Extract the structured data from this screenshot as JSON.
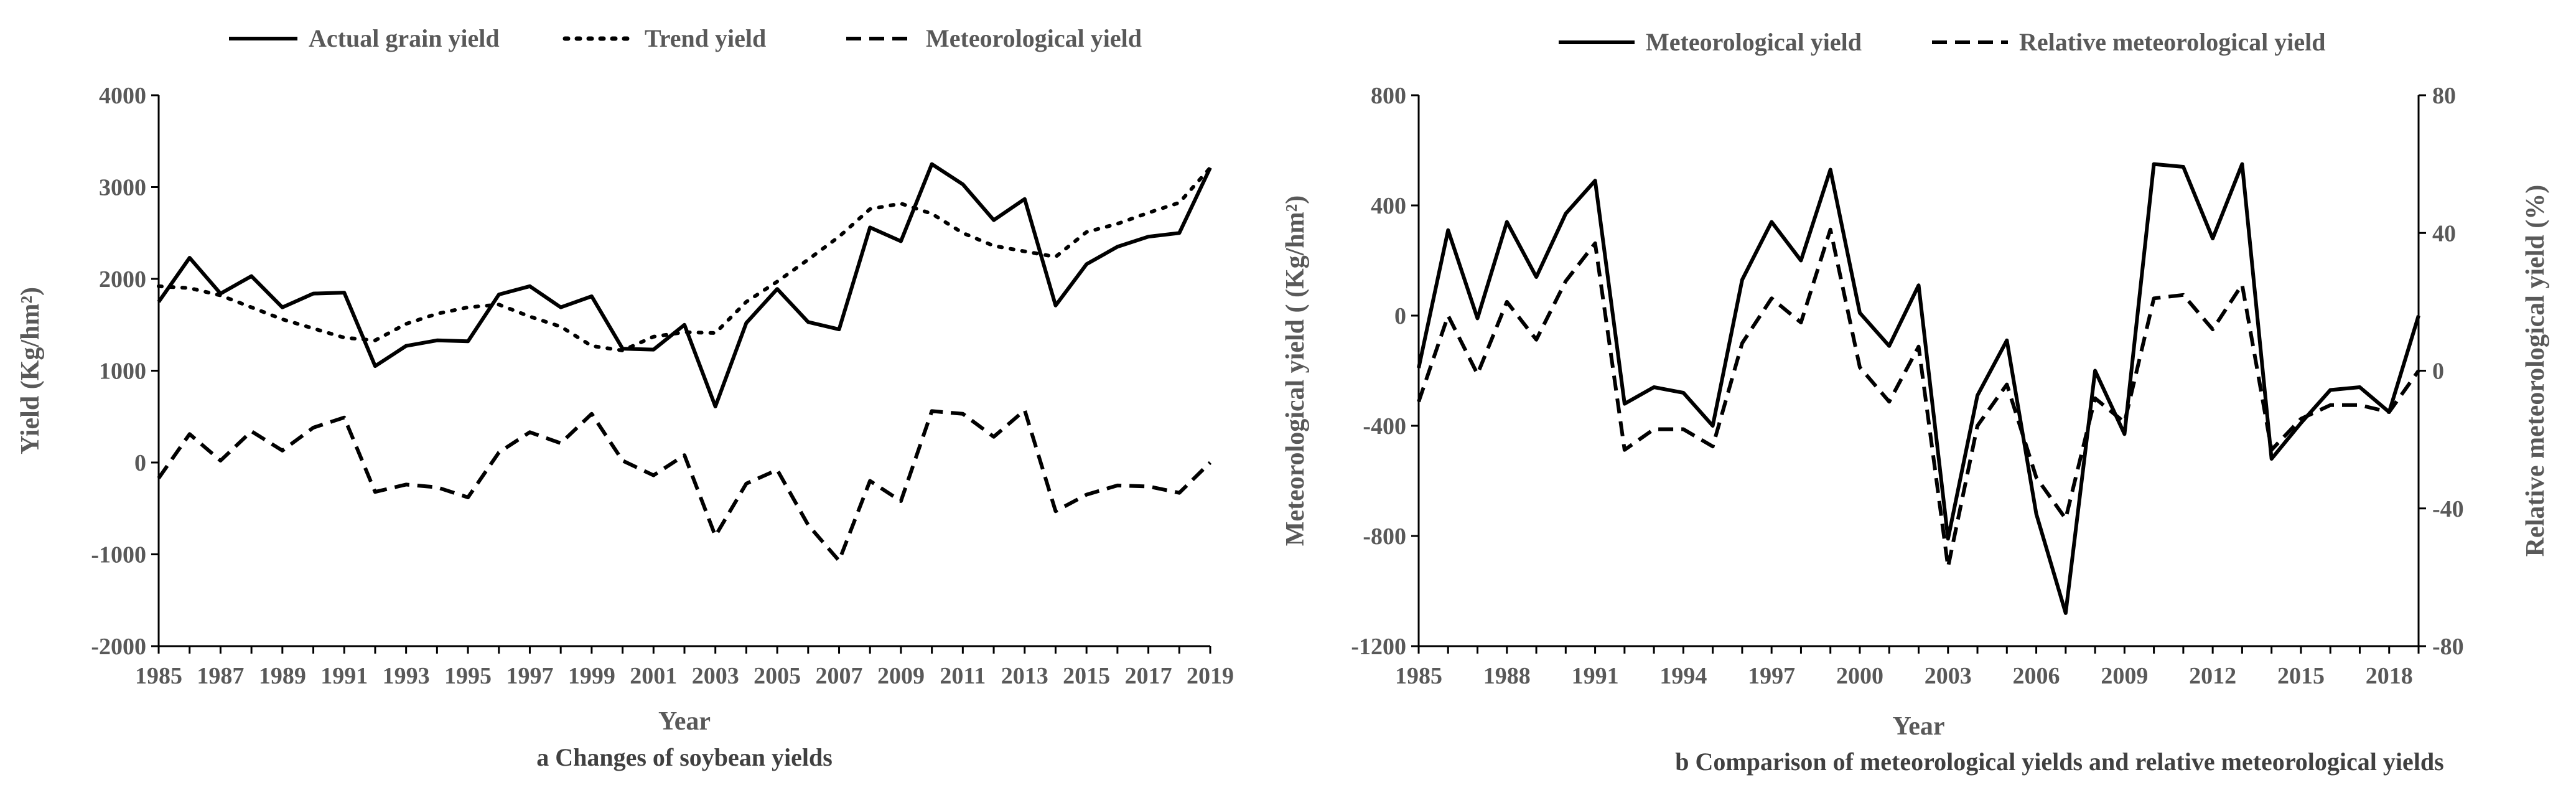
{
  "chart_data": [
    {
      "type": "line",
      "caption": "a Changes of soybean yields",
      "xlabel": "Year",
      "ylabel": "Yield (Kg/hm²)",
      "ylim": [
        -2000,
        4000
      ],
      "yticks": [
        "-2000",
        "-1000",
        "0",
        "1000",
        "2000",
        "3000",
        "4000"
      ],
      "xticks": [
        "1985",
        "1987",
        "1989",
        "1991",
        "1993",
        "1995",
        "1997",
        "1999",
        "2001",
        "2003",
        "2005",
        "2007",
        "2009",
        "2011",
        "2013",
        "2015",
        "2017",
        "2019"
      ],
      "x": [
        1985,
        1986,
        1987,
        1988,
        1989,
        1990,
        1991,
        1992,
        1993,
        1994,
        1995,
        1996,
        1997,
        1998,
        1999,
        2000,
        2001,
        2002,
        2003,
        2004,
        2005,
        2006,
        2007,
        2008,
        2009,
        2010,
        2011,
        2012,
        2013,
        2014,
        2015,
        2016,
        2017,
        2018,
        2019
      ],
      "legend": [
        "Actual grain yield",
        "Trend yield",
        "Meteorological yield"
      ],
      "series": [
        {
          "name": "Actual grain yield",
          "style": "solid",
          "values": [
            1750,
            2230,
            1840,
            2030,
            1690,
            1840,
            1850,
            1050,
            1270,
            1330,
            1320,
            1830,
            1920,
            1690,
            1810,
            1240,
            1230,
            1500,
            610,
            1520,
            1890,
            1530,
            1450,
            2560,
            2410,
            3250,
            3030,
            2640,
            2870,
            1710,
            2160,
            2350,
            2460,
            2500,
            3210
          ]
        },
        {
          "name": "Trend yield",
          "style": "dotted",
          "values": [
            1920,
            1900,
            1820,
            1690,
            1560,
            1460,
            1360,
            1330,
            1510,
            1620,
            1690,
            1720,
            1590,
            1480,
            1270,
            1220,
            1370,
            1420,
            1410,
            1750,
            1970,
            2210,
            2460,
            2760,
            2820,
            2710,
            2500,
            2360,
            2300,
            2240,
            2510,
            2600,
            2720,
            2830,
            3210
          ]
        },
        {
          "name": "Meteorological yield",
          "style": "dashed",
          "values": [
            -170,
            310,
            20,
            340,
            130,
            380,
            490,
            -320,
            -240,
            -270,
            -380,
            110,
            330,
            210,
            530,
            20,
            -140,
            80,
            -800,
            -230,
            -80,
            -680,
            -1070,
            -200,
            -420,
            560,
            530,
            280,
            570,
            -530,
            -350,
            -250,
            -260,
            -330,
            0
          ]
        }
      ]
    },
    {
      "type": "line",
      "caption": "b Comparison of meteorological yields and relative meteorological yields",
      "xlabel": "Year",
      "ylabel": "Meteorological yield ( (Kg/hm²)",
      "y2label": "Relative meteorological yield (%)",
      "ylim": [
        -1200,
        800
      ],
      "y2lim": [
        -80,
        80
      ],
      "yticks": [
        "-1200",
        "-800",
        "-400",
        "0",
        "400",
        "800"
      ],
      "y2ticks": [
        "-80",
        "-40",
        "0",
        "40",
        "80"
      ],
      "xticks": [
        "1985",
        "1988",
        "1991",
        "1994",
        "1997",
        "2000",
        "2003",
        "2006",
        "2009",
        "2012",
        "2015",
        "2018"
      ],
      "x": [
        1985,
        1986,
        1987,
        1988,
        1989,
        1990,
        1991,
        1992,
        1993,
        1994,
        1995,
        1996,
        1997,
        1998,
        1999,
        2000,
        2001,
        2002,
        2003,
        2004,
        2005,
        2006,
        2007,
        2008,
        2009,
        2010,
        2011,
        2012,
        2013,
        2014,
        2015,
        2016,
        2017,
        2018,
        2019
      ],
      "legend": [
        "Meteorological yield",
        "Relative meteorological yield"
      ],
      "series": [
        {
          "name": "Meteorological yield",
          "style": "solid",
          "axis": "left",
          "values": [
            -190,
            310,
            -10,
            340,
            140,
            370,
            490,
            -320,
            -260,
            -280,
            -400,
            130,
            340,
            200,
            530,
            10,
            -110,
            110,
            -810,
            -290,
            -90,
            -720,
            -1080,
            -200,
            -430,
            550,
            540,
            280,
            550,
            -520,
            -390,
            -270,
            -260,
            -350,
            0
          ]
        },
        {
          "name": "Relative meteorological yield",
          "style": "dashed",
          "axis": "right",
          "values": [
            -9,
            16,
            -1,
            20,
            9,
            26,
            37,
            -23,
            -17,
            -17,
            -22,
            8,
            21,
            14,
            41,
            1,
            -9,
            7,
            -57,
            -16,
            -4,
            -31,
            -43,
            -8,
            -15,
            21,
            22,
            12,
            25,
            -23,
            -14,
            -10,
            -10,
            -12,
            0
          ]
        }
      ]
    }
  ]
}
